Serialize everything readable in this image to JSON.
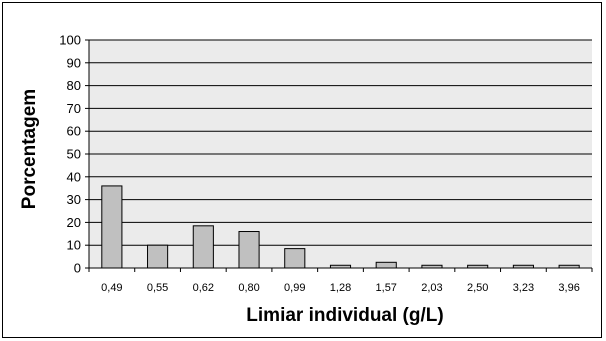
{
  "chart_data": {
    "type": "bar",
    "title": "",
    "xlabel": "Limiar individual (g/L)",
    "ylabel": "Porcentagem",
    "categories": [
      "0,49",
      "0,55",
      "0,62",
      "0,80",
      "0,99",
      "1,28",
      "1,57",
      "2,03",
      "2,50",
      "3,23",
      "3,96"
    ],
    "values": [
      36,
      10,
      18.5,
      16,
      8.5,
      1.2,
      2.5,
      1.2,
      1.2,
      1.2,
      1.2
    ],
    "ylim": [
      0,
      100
    ],
    "yticks": [
      0,
      10,
      20,
      30,
      40,
      50,
      60,
      70,
      80,
      90,
      100
    ],
    "grid": true,
    "legend": "none",
    "colors": {
      "bar_fill": "#c0c0c0",
      "bar_stroke": "#000000",
      "plot_background": "#ebebeb",
      "gridline": "#000000"
    }
  }
}
